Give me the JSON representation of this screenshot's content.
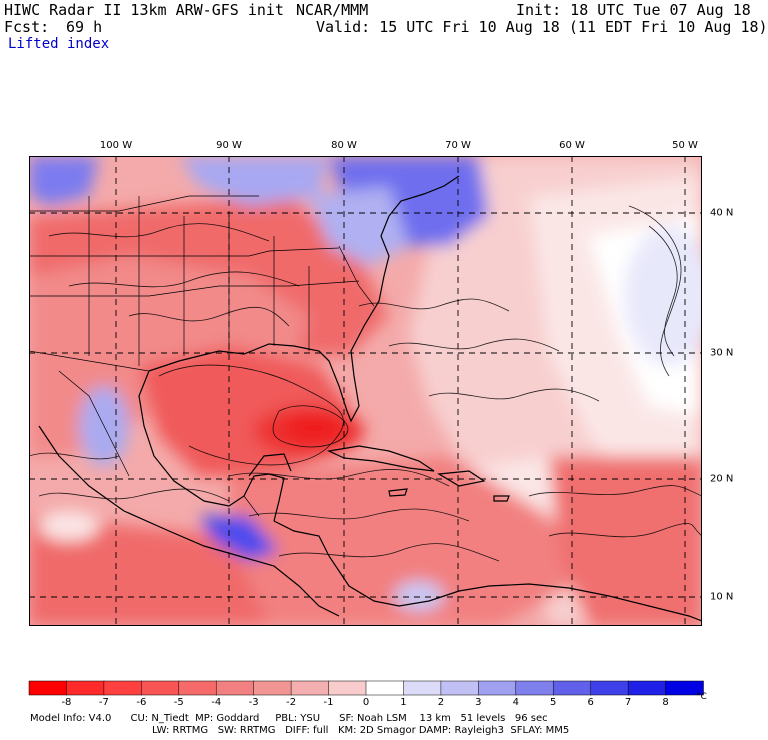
{
  "header": {
    "title_left": "HIWC Radar II 13km ARW-GFS init",
    "org": "NCAR/MMM",
    "init": "Init: 18 UTC Tue 07 Aug 18",
    "forecast_label": "Fcst:",
    "forecast_value": "69 h",
    "valid": "Valid: 15 UTC Fri 10 Aug 18 (11 EDT Fri 10 Aug 18)",
    "field": "Lifted index"
  },
  "map": {
    "longitudes": [
      "100 W",
      "90 W",
      "80 W",
      "70 W",
      "60 W",
      "50 W"
    ],
    "latitudes": [
      "40 N",
      "30 N",
      "20 N",
      "10 N"
    ],
    "colors": {
      "strong_red": "#ee2020",
      "red": "#f06a6a",
      "light_red": "#f4aaaa",
      "white": "#ffffff",
      "light_blue": "#c8c8f4",
      "blue": "#6e6eee",
      "strong_blue": "#2a2aee"
    }
  },
  "colorbar": {
    "ticks": [
      "-8",
      "-7",
      "-6",
      "-5",
      "-4",
      "-3",
      "-2",
      "-1",
      "0",
      "1",
      "2",
      "3",
      "4",
      "5",
      "6",
      "7",
      "8"
    ],
    "unit": "°C",
    "colors": [
      "#ff0000",
      "#ff2a2a",
      "#ff4040",
      "#fa5555",
      "#f66a6a",
      "#f38080",
      "#f29595",
      "#f4b0b0",
      "#f8cccc",
      "#ffffff",
      "#dcdcf8",
      "#c0c0f4",
      "#a0a0f0",
      "#8080ec",
      "#6060ea",
      "#4040e8",
      "#2020e6",
      "#0000e4"
    ]
  },
  "footer": {
    "line1": "Model Info: V4.0      CU: N_Tiedt  MP: Goddard     PBL: YSU      SF: Noah LSM    13 km   51 levels   96 sec",
    "line2": "LW: RRTMG   SW: RRTMG   DIFF: full   KM: 2D Smagor DAMP: Rayleigh3  SFLAY: MM5"
  }
}
